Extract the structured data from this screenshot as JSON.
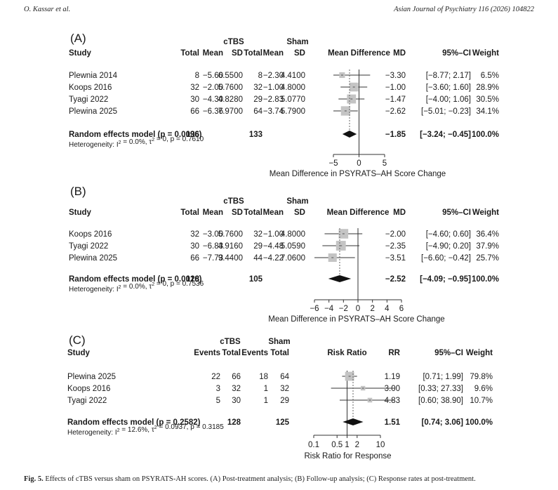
{
  "header": {
    "left": "O. Kassar et al.",
    "right": "Asian Journal of Psychiatry 116 (2026) 104822"
  },
  "panelA": {
    "label": "(A)",
    "group1": "cTBS",
    "group2": "Sham",
    "cols": [
      "Study",
      "Total",
      "Mean",
      "SD",
      "Total",
      "Mean",
      "SD",
      "Mean Difference",
      "MD",
      "95%–CI",
      "Weight"
    ],
    "studies": [
      {
        "name": "Plewnia 2014",
        "t1": "8",
        "m1": "−5.60",
        "sd1": "6.5500",
        "t2": "8",
        "m2": "−2.30",
        "sd2": "4.4100",
        "md": "−3.30",
        "ci": "[−8.77; 2.17]",
        "w": "6.5%",
        "est": -3.3,
        "lo": -8.77,
        "hi": 2.17,
        "weight": 6.5
      },
      {
        "name": "Koops 2016",
        "t1": "32",
        "m1": "−2.00",
        "sd1": "5.7600",
        "t2": "32",
        "m2": "−1.00",
        "sd2": "4.8000",
        "md": "−1.00",
        "ci": "[−3.60; 1.60]",
        "w": "28.9%",
        "est": -1.0,
        "lo": -3.6,
        "hi": 1.6,
        "weight": 28.9
      },
      {
        "name": "Tyagi 2022",
        "t1": "30",
        "m1": "−4.30",
        "sd1": "4.8280",
        "t2": "29",
        "m2": "−2.83",
        "sd2": "5.0770",
        "md": "−1.47",
        "ci": "[−4.00; 1.06]",
        "w": "30.5%",
        "est": -1.47,
        "lo": -4.0,
        "hi": 1.06,
        "weight": 30.5
      },
      {
        "name": "Plewina 2025",
        "t1": "66",
        "m1": "−6.36",
        "sd1": "7.9700",
        "t2": "64",
        "m2": "−3.74",
        "sd2": "5.7900",
        "md": "−2.62",
        "ci": "[−5.01; −0.23]",
        "w": "34.1%",
        "est": -2.62,
        "lo": -5.01,
        "hi": -0.23,
        "weight": 34.1
      }
    ],
    "model": {
      "label": "Random effects model (p = 0.0096)",
      "t1": "136",
      "t2": "133",
      "md": "−1.85",
      "ci": "[−3.24; −0.45]",
      "w": "100.0%",
      "est": -1.85,
      "lo": -3.24,
      "hi": -0.45
    },
    "heterogeneity": "Heterogeneity: I² = 0.0%, τ² = 0, p = 0.7610",
    "axis": {
      "min": -5,
      "max": 5,
      "ticks": [
        -5,
        0,
        5
      ],
      "tick_labels": [
        "−5",
        "0",
        "5"
      ],
      "label": "Mean Difference in PSYRATS–AH Score Change"
    }
  },
  "panelB": {
    "label": "(B)",
    "group1": "cTBS",
    "group2": "Sham",
    "cols": [
      "Study",
      "Total",
      "Mean",
      "SD",
      "Total",
      "Mean",
      "SD",
      "Mean Difference",
      "MD",
      "95%–CI",
      "Weight"
    ],
    "studies": [
      {
        "name": "Koops 2016",
        "t1": "32",
        "m1": "−3.00",
        "sd1": "5.7600",
        "t2": "32",
        "m2": "−1.00",
        "sd2": "4.8000",
        "md": "−2.00",
        "ci": "[−4.60; 0.60]",
        "w": "36.4%",
        "est": -2.0,
        "lo": -4.6,
        "hi": 0.6,
        "weight": 36.4
      },
      {
        "name": "Tyagi 2022",
        "t1": "30",
        "m1": "−6.83",
        "sd1": "4.9160",
        "t2": "29",
        "m2": "−4.48",
        "sd2": "5.0590",
        "md": "−2.35",
        "ci": "[−4.90; 0.20]",
        "w": "37.9%",
        "est": -2.35,
        "lo": -4.9,
        "hi": 0.2,
        "weight": 37.9
      },
      {
        "name": "Plewina 2025",
        "t1": "66",
        "m1": "−7.73",
        "sd1": "9.4400",
        "t2": "44",
        "m2": "−4.22",
        "sd2": "7.0600",
        "md": "−3.51",
        "ci": "[−6.60; −0.42]",
        "w": "25.7%",
        "est": -3.51,
        "lo": -6.6,
        "hi": -0.42,
        "weight": 25.7
      }
    ],
    "model": {
      "label": "Random effects model (p = 0.0016)",
      "t1": "128",
      "t2": "105",
      "md": "−2.52",
      "ci": "[−4.09; −0.95]",
      "w": "100.0%",
      "est": -2.52,
      "lo": -4.09,
      "hi": -0.95
    },
    "heterogeneity": "Heterogeneity: I² = 0.0%, τ² = 0, p = 0.7536",
    "axis": {
      "min": -6,
      "max": 6,
      "ticks": [
        -6,
        -4,
        -2,
        0,
        2,
        4,
        6
      ],
      "tick_labels": [
        "−6",
        "−4",
        "−2",
        "0",
        "2",
        "4",
        "6"
      ],
      "label": "Mean Difference in PSYRATS–AH Score Change"
    }
  },
  "panelC": {
    "label": "(C)",
    "group1": "cTBS",
    "group2": "Sham",
    "cols": [
      "Study",
      "Events",
      "Total",
      "Events",
      "Total",
      "Risk Ratio",
      "RR",
      "95%–CI",
      "Weight"
    ],
    "studies": [
      {
        "name": "Plewina 2025",
        "e1": "22",
        "t1": "66",
        "e2": "18",
        "t2": "64",
        "rr": "1.19",
        "ci": "[0.71;  1.99]",
        "w": "79.8%",
        "est": 1.19,
        "lo": 0.71,
        "hi": 1.99,
        "weight": 79.8
      },
      {
        "name": "Koops 2016",
        "e1": "3",
        "t1": "32",
        "e2": "1",
        "t2": "32",
        "rr": "3.00",
        "ci": "[0.33; 27.33]",
        "w": "9.6%",
        "est": 3.0,
        "lo": 0.33,
        "hi": 27.33,
        "weight": 9.6
      },
      {
        "name": "Tyagi 2022",
        "e1": "5",
        "t1": "30",
        "e2": "1",
        "t2": "29",
        "rr": "4.83",
        "ci": "[0.60; 38.90]",
        "w": "10.7%",
        "est": 4.83,
        "lo": 0.6,
        "hi": 38.9,
        "weight": 10.7
      }
    ],
    "model": {
      "label": "Random effects model (p = 0.2582)",
      "t1": "128",
      "t2": "125",
      "rr": "1.51",
      "ci": "[0.74;  3.06]",
      "w": "100.0%",
      "est": 1.51,
      "lo": 0.74,
      "hi": 3.06
    },
    "heterogeneity": "Heterogeneity: I² = 12.6%, τ² = 0.0937, p = 0.3185",
    "axis": {
      "min": 0.1,
      "max": 10,
      "scale": "log",
      "ticks": [
        0.1,
        0.5,
        1,
        2,
        10
      ],
      "tick_labels": [
        "0.1",
        "0.5",
        "1",
        "2",
        "10"
      ],
      "label": "Risk Ratio for Response"
    }
  },
  "caption": {
    "label": "Fig. 5.",
    "text": " Effects of cTBS versus sham on PSYRATS-AH scores. (A) Post-treatment analysis; (B) Follow-up analysis; (C) Response rates at post-treatment."
  }
}
